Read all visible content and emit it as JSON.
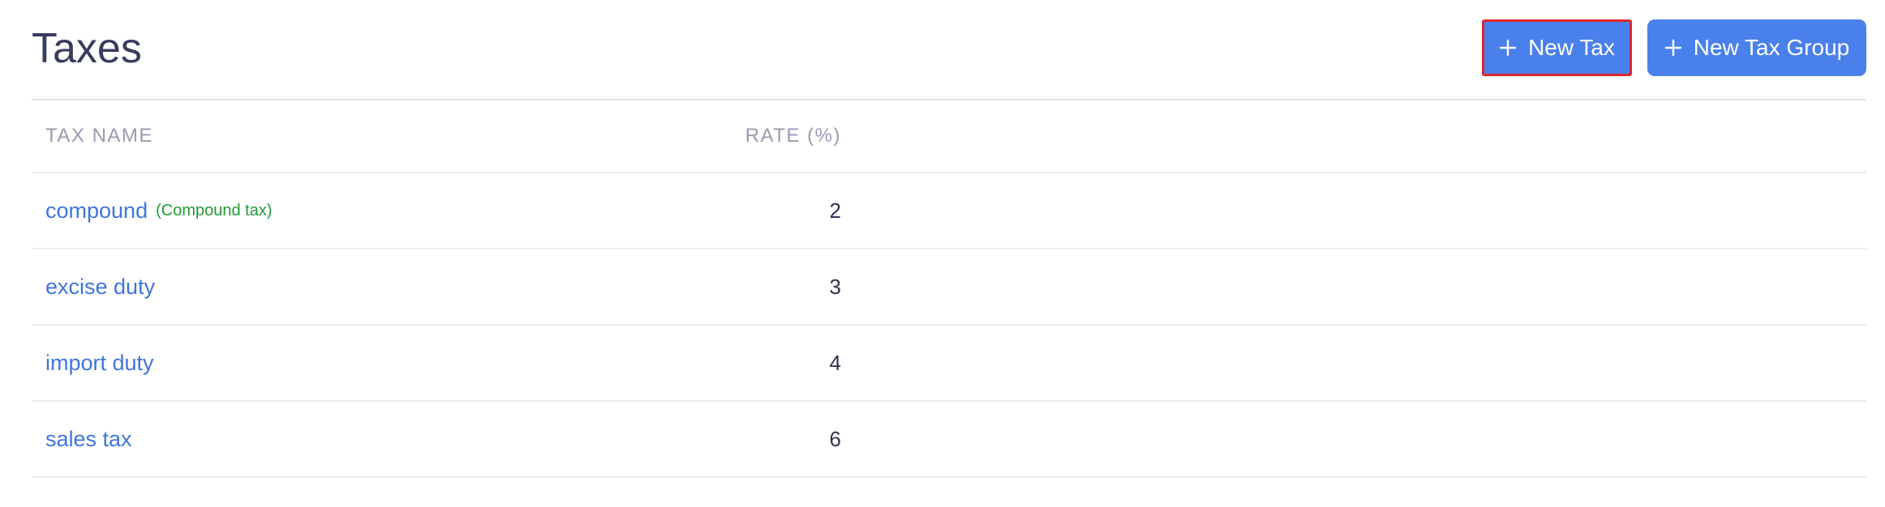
{
  "header": {
    "title": "Taxes"
  },
  "actions": [
    "New Tax",
    "New Tax Group"
  ],
  "table": {
    "columns": [
      "TAX NAME",
      "RATE (%)"
    ],
    "rows": [
      {
        "name": "compound",
        "note": "(Compound tax)",
        "rate": 2
      },
      {
        "name": "excise duty",
        "rate": 3
      },
      {
        "name": "import duty",
        "rate": 4
      },
      {
        "name": "sales tax",
        "rate": 6
      }
    ]
  }
}
